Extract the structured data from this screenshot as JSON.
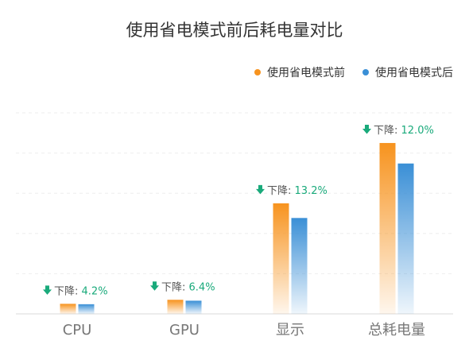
{
  "chart_data": {
    "type": "bar",
    "title": "使用省电模式前后耗电量对比",
    "categories": [
      "CPU",
      "GPU",
      "显示",
      "总耗电量"
    ],
    "series": [
      {
        "name": "使用省电模式前",
        "color": "#f7931e",
        "values": [
          5,
          7,
          55,
          85
        ]
      },
      {
        "name": "使用省电模式后",
        "color": "#3a8fd6",
        "values": [
          4.8,
          6.55,
          47.7,
          74.8
        ]
      }
    ],
    "annotations": [
      {
        "prefix": "下降:",
        "text": "4.2%"
      },
      {
        "prefix": "下降:",
        "text": "6.4%"
      },
      {
        "prefix": "下降:",
        "text": "13.2%"
      },
      {
        "prefix": "下降:",
        "text": "12.0%"
      }
    ],
    "ylim": [
      0,
      100
    ],
    "grid": true,
    "legend": "top-right",
    "annotation_color": "#1aaa7b"
  }
}
